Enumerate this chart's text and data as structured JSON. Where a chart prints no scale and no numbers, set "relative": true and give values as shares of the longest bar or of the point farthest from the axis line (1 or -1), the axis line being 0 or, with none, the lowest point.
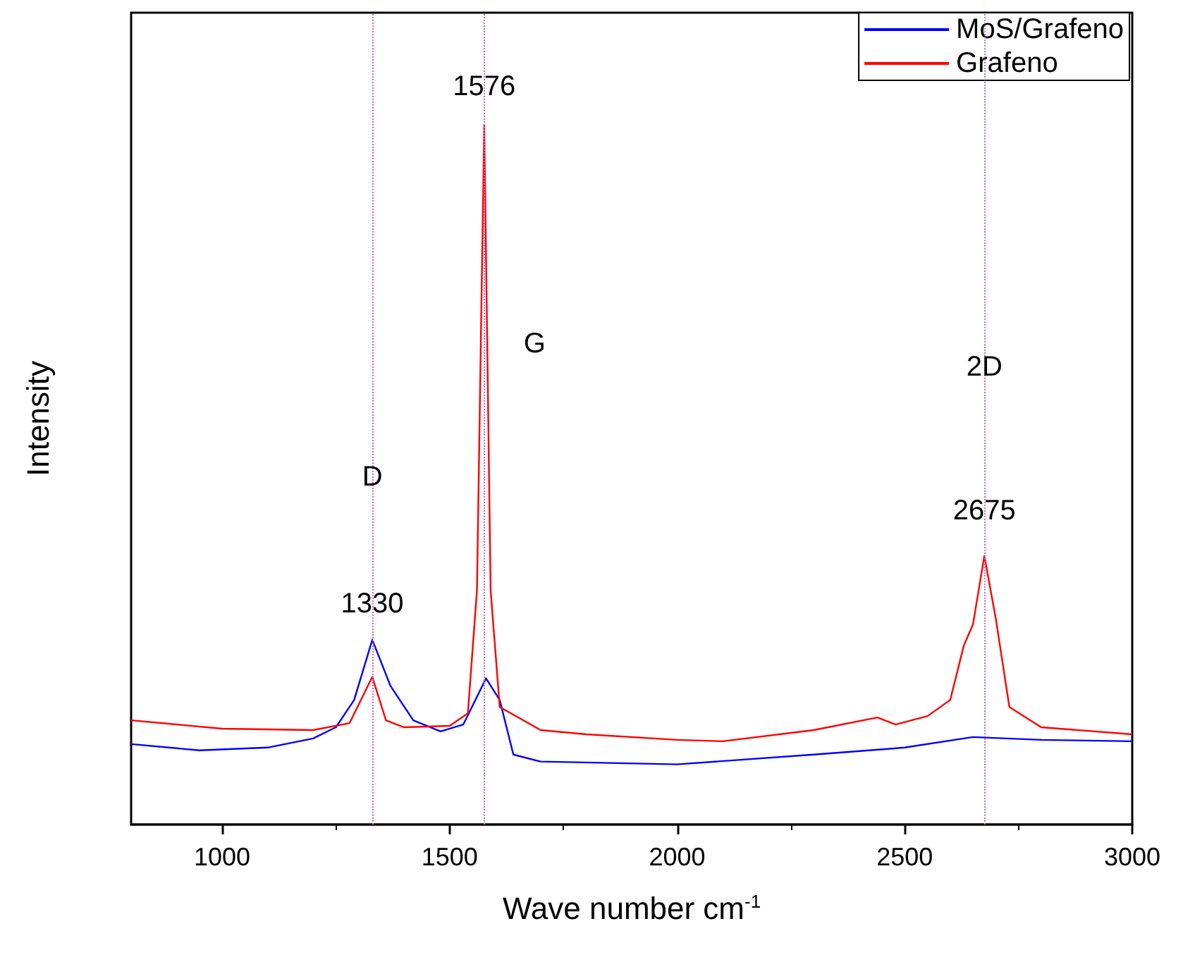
{
  "chart_data": {
    "type": "line",
    "relative": true,
    "xlabel": "Wave number cm$^{-1}$",
    "ylabel": "Intensity",
    "xlim": [
      800,
      3000
    ],
    "xticks": [
      1000,
      1500,
      2000,
      2500,
      3000
    ],
    "tick_labels": "x",
    "grid": false,
    "legend": "top right",
    "marker": "none",
    "line_style": "solid",
    "series": [
      {
        "name": "MoS/Grafeno",
        "color": "#0000ff",
        "x": [
          800,
          950,
          1100,
          1200,
          1250,
          1290,
          1330,
          1370,
          1420,
          1480,
          1530,
          1580,
          1610,
          1640,
          1700,
          2000,
          2300,
          2500,
          2650,
          2800,
          3000
        ],
        "values": [
          0.115,
          0.106,
          0.11,
          0.123,
          0.139,
          0.178,
          0.264,
          0.198,
          0.149,
          0.133,
          0.143,
          0.209,
          0.178,
          0.1,
          0.09,
          0.086,
          0.1,
          0.11,
          0.125,
          0.121,
          0.119
        ]
      },
      {
        "name": "Grafeno",
        "color": "#ff0000",
        "x": [
          800,
          1000,
          1200,
          1280,
          1330,
          1360,
          1400,
          1500,
          1540,
          1560,
          1576,
          1590,
          1610,
          1700,
          1800,
          2000,
          2100,
          2300,
          2440,
          2480,
          2550,
          2600,
          2630,
          2650,
          2675,
          2700,
          2730,
          2800,
          3000
        ],
        "values": [
          0.149,
          0.137,
          0.135,
          0.145,
          0.211,
          0.149,
          0.139,
          0.141,
          0.159,
          0.335,
          1,
          0.335,
          0.168,
          0.135,
          0.129,
          0.121,
          0.119,
          0.135,
          0.153,
          0.143,
          0.155,
          0.178,
          0.256,
          0.286,
          0.384,
          0.295,
          0.168,
          0.139,
          0.129
        ]
      }
    ],
    "ref_lines": [
      {
        "axis": "x",
        "value": 1330,
        "color": "#cc66cc",
        "line_style": "dotted"
      },
      {
        "axis": "x",
        "value": 1576,
        "color": "#cc66cc",
        "line_style": "dotted"
      },
      {
        "axis": "x",
        "value": 2675,
        "color": "#cc66cc",
        "line_style": "dotted"
      }
    ],
    "annotations": [
      {
        "text": "1330",
        "x": 1330,
        "y": 0.315
      },
      {
        "text": "D",
        "x": 1330,
        "y": 0.497
      },
      {
        "text": "1576",
        "x": 1576,
        "y": 1.055
      },
      {
        "text": "G",
        "x": 1576,
        "y": 0.687
      },
      {
        "text": "2D",
        "x": 2675,
        "y": 0.654
      },
      {
        "text": "2675",
        "x": 2675,
        "y": 0.448
      }
    ]
  }
}
